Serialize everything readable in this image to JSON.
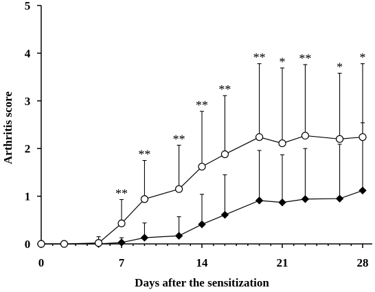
{
  "chart_data": {
    "type": "line",
    "title": "",
    "xlabel": "Days after the sensitization",
    "ylabel": "Arthritis score",
    "xlim": [
      0,
      28
    ],
    "ylim": [
      0,
      5
    ],
    "xticks": [
      "0",
      "7",
      "14",
      "21",
      "28"
    ],
    "yticks": [
      "0",
      "1",
      "2",
      "3",
      "4",
      "5"
    ],
    "grid": false,
    "legend": "none",
    "series": [
      {
        "marker": "open-circle",
        "x": [
          0,
          2,
          5,
          7,
          9,
          12,
          14,
          16,
          19,
          21,
          23,
          26,
          28
        ],
        "y": [
          0,
          0,
          0.02,
          0.43,
          0.94,
          1.15,
          1.62,
          1.88,
          2.24,
          2.11,
          2.27,
          2.2,
          2.24
        ],
        "err_upper": [
          0,
          0,
          0.15,
          0.93,
          1.75,
          2.07,
          2.78,
          3.11,
          3.78,
          3.69,
          3.76,
          3.58,
          3.78
        ]
      },
      {
        "marker": "filled-diamond",
        "x": [
          0,
          2,
          5,
          7,
          9,
          12,
          14,
          16,
          19,
          21,
          23,
          26,
          28
        ],
        "y": [
          0,
          0,
          0,
          0.03,
          0.13,
          0.17,
          0.41,
          0.61,
          0.91,
          0.87,
          0.94,
          0.95,
          1.12
        ],
        "err_upper": [
          0,
          0,
          0.05,
          0.13,
          0.44,
          0.57,
          1.04,
          1.45,
          1.96,
          1.87,
          2.0,
          2.09,
          2.54
        ]
      }
    ],
    "annotations": [
      {
        "x": 7,
        "y": 0.93,
        "text": "**"
      },
      {
        "x": 9,
        "y": 1.75,
        "text": "**"
      },
      {
        "x": 12,
        "y": 2.07,
        "text": "**"
      },
      {
        "x": 14,
        "y": 2.78,
        "text": "**"
      },
      {
        "x": 16,
        "y": 3.11,
        "text": "**"
      },
      {
        "x": 19,
        "y": 3.78,
        "text": "**"
      },
      {
        "x": 21,
        "y": 3.69,
        "text": "*"
      },
      {
        "x": 23,
        "y": 3.76,
        "text": "**"
      },
      {
        "x": 26,
        "y": 3.58,
        "text": "*"
      },
      {
        "x": 28,
        "y": 3.78,
        "text": "*"
      }
    ]
  }
}
